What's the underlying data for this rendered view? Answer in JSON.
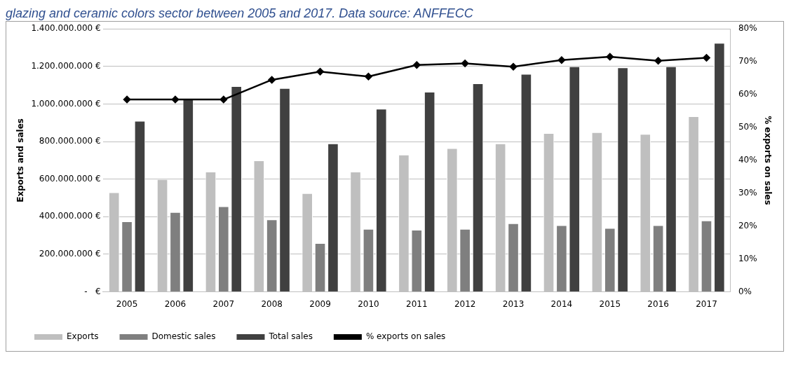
{
  "chart_data": {
    "type": "bar",
    "title": "glazing and ceramic colors sector between 2005 and 2017. Data source: ANFFECC",
    "ylabel": "Exports and sales",
    "y2label": "% exports on sales",
    "categories": [
      "2005",
      "2006",
      "2007",
      "2008",
      "2009",
      "2010",
      "2011",
      "2012",
      "2013",
      "2014",
      "2015",
      "2016",
      "2017"
    ],
    "series": [
      {
        "name": "Exports",
        "color": "#bfbfbf",
        "values": [
          530000000,
          600000000,
          640000000,
          700000000,
          525000000,
          640000000,
          730000000,
          765000000,
          790000000,
          845000000,
          850000000,
          840000000,
          935000000
        ]
      },
      {
        "name": "Domestic sales",
        "color": "#7f7f7f",
        "values": [
          375000000,
          425000000,
          455000000,
          385000000,
          260000000,
          335000000,
          330000000,
          335000000,
          365000000,
          355000000,
          340000000,
          355000000,
          380000000
        ]
      },
      {
        "name": "Total sales",
        "color": "#404040",
        "values": [
          910000000,
          1030000000,
          1095000000,
          1085000000,
          790000000,
          975000000,
          1065000000,
          1110000000,
          1160000000,
          1200000000,
          1195000000,
          1200000000,
          1325000000
        ]
      },
      {
        "name": "% exports on sales",
        "type": "line",
        "axis": "y2",
        "color": "#000000",
        "marker": "diamond",
        "values": [
          58.5,
          58.5,
          58.5,
          64.5,
          67,
          65.5,
          69,
          69.5,
          68.5,
          70.5,
          71.5,
          70.3,
          71.2
        ]
      }
    ],
    "ylim": [
      0,
      1400000000
    ],
    "yticks": [
      {
        "value": 0,
        "label": "-   €"
      },
      {
        "value": 200000000,
        "label": "200.000.000 €"
      },
      {
        "value": 400000000,
        "label": "400.000.000 €"
      },
      {
        "value": 600000000,
        "label": "600.000.000 €"
      },
      {
        "value": 800000000,
        "label": "800.000.000 €"
      },
      {
        "value": 1000000000,
        "label": "1.000.000.000 €"
      },
      {
        "value": 1200000000,
        "label": "1.200.000.000 €"
      },
      {
        "value": 1400000000,
        "label": "1.400.000.000 €"
      }
    ],
    "y2lim": [
      0,
      80
    ],
    "y2ticks": [
      {
        "value": 0,
        "label": "0%"
      },
      {
        "value": 10,
        "label": "10%"
      },
      {
        "value": 20,
        "label": "20%"
      },
      {
        "value": 30,
        "label": "30%"
      },
      {
        "value": 40,
        "label": "40%"
      },
      {
        "value": 50,
        "label": "50%"
      },
      {
        "value": 60,
        "label": "60%"
      },
      {
        "value": 70,
        "label": "70%"
      },
      {
        "value": 80,
        "label": "80%"
      }
    ],
    "grid": "y",
    "legend": "bottom"
  }
}
